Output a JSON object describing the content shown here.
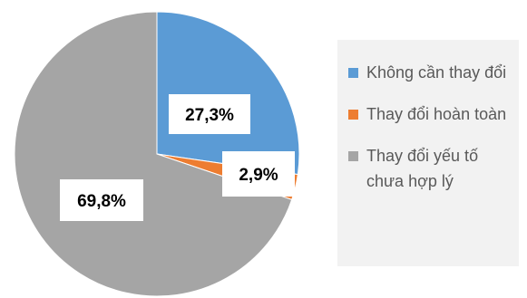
{
  "chart_data": {
    "type": "pie",
    "categories": [
      "Không cần thay đổi",
      "Thay đổi hoàn toàn",
      "Thay đổi yếu tố chưa hợp lý"
    ],
    "values": [
      27.3,
      2.9,
      69.8
    ],
    "data_labels": [
      "27,3%",
      "2,9%",
      "69,8%"
    ],
    "colors": [
      "#5b9bd5",
      "#ed7d31",
      "#a5a5a5"
    ],
    "legend_position": "right",
    "title": ""
  },
  "legend": {
    "items": [
      {
        "label": "Không cần thay đổi",
        "color": "#5b9bd5"
      },
      {
        "label": "Thay đổi hoàn toàn",
        "color": "#ed7d31"
      },
      {
        "label": "Thay đổi yếu tố chưa hợp lý",
        "color": "#a5a5a5"
      }
    ]
  }
}
